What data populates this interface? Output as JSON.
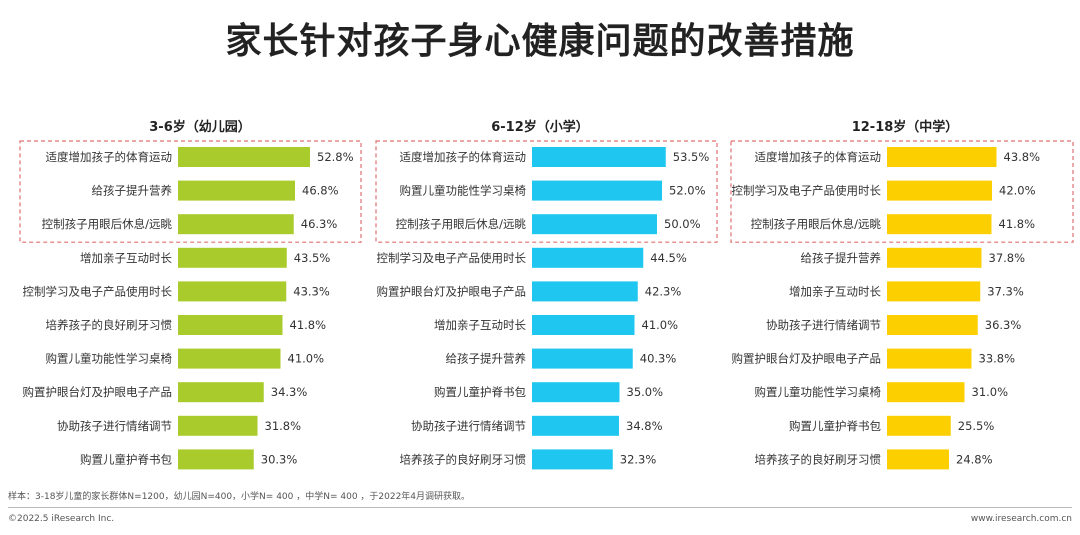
{
  "title": "家长针对孩子身心健康问题的改善措施",
  "footnote": "样本：3-18岁儿童的家长群体N=1200，幼儿园N=400，小学N= 400 ，中学N= 400 ，于2022年4月调研获取。",
  "copyright": "©2022.5 iResearch Inc.",
  "website": "www.iresearch.com.cn",
  "chart_data": [
    {
      "type": "bar",
      "orientation": "horizontal",
      "title": "3-6岁（幼儿园）",
      "color": "#a9cc2c",
      "highlight_top": 3,
      "categories": [
        "适度增加孩子的体育运动",
        "给孩子提升营养",
        "控制孩子用眼后休息/远眺",
        "增加亲子互动时长",
        "控制学习及电子产品使用时长",
        "培养孩子的良好刷牙习惯",
        "购置儿童功能性学习桌椅",
        "购置护眼台灯及护眼电子产品",
        "协助孩子进行情绪调节",
        "购置儿童护脊书包"
      ],
      "values": [
        52.8,
        46.8,
        46.3,
        43.5,
        43.3,
        41.8,
        41.0,
        34.3,
        31.8,
        30.3
      ],
      "labels": [
        "52.8%",
        "46.8%",
        "46.3%",
        "43.5%",
        "43.3%",
        "41.8%",
        "41.0%",
        "34.3%",
        "31.8%",
        "30.3%"
      ]
    },
    {
      "type": "bar",
      "orientation": "horizontal",
      "title": "6-12岁（小学）",
      "color": "#1fc6ef",
      "highlight_top": 3,
      "categories": [
        "适度增加孩子的体育运动",
        "购置儿童功能性学习桌椅",
        "控制孩子用眼后休息/远眺",
        "控制学习及电子产品使用时长",
        "购置护眼台灯及护眼电子产品",
        "增加亲子互动时长",
        "给孩子提升营养",
        "购置儿童护脊书包",
        "协助孩子进行情绪调节",
        "培养孩子的良好刷牙习惯"
      ],
      "values": [
        53.5,
        52.0,
        50.0,
        44.5,
        42.3,
        41.0,
        40.3,
        35.0,
        34.8,
        32.3
      ],
      "labels": [
        "53.5%",
        "52.0%",
        "50.0%",
        "44.5%",
        "42.3%",
        "41.0%",
        "40.3%",
        "35.0%",
        "34.8%",
        "32.3%"
      ]
    },
    {
      "type": "bar",
      "orientation": "horizontal",
      "title": "12-18岁（中学）",
      "color": "#fcd000",
      "highlight_top": 3,
      "categories": [
        "适度增加孩子的体育运动",
        "控制学习及电子产品使用时长",
        "控制孩子用眼后休息/远眺",
        "给孩子提升营养",
        "增加亲子互动时长",
        "协助孩子进行情绪调节",
        "购置护眼台灯及护眼电子产品",
        "购置儿童功能性学习桌椅",
        "购置儿童护脊书包",
        "培养孩子的良好刷牙习惯"
      ],
      "values": [
        43.8,
        42.0,
        41.8,
        37.8,
        37.3,
        36.3,
        33.8,
        31.0,
        25.5,
        24.8
      ],
      "labels": [
        "43.8%",
        "42.0%",
        "41.8%",
        "37.8%",
        "37.3%",
        "36.3%",
        "33.8%",
        "31.0%",
        "25.5%",
        "24.8%"
      ]
    }
  ]
}
